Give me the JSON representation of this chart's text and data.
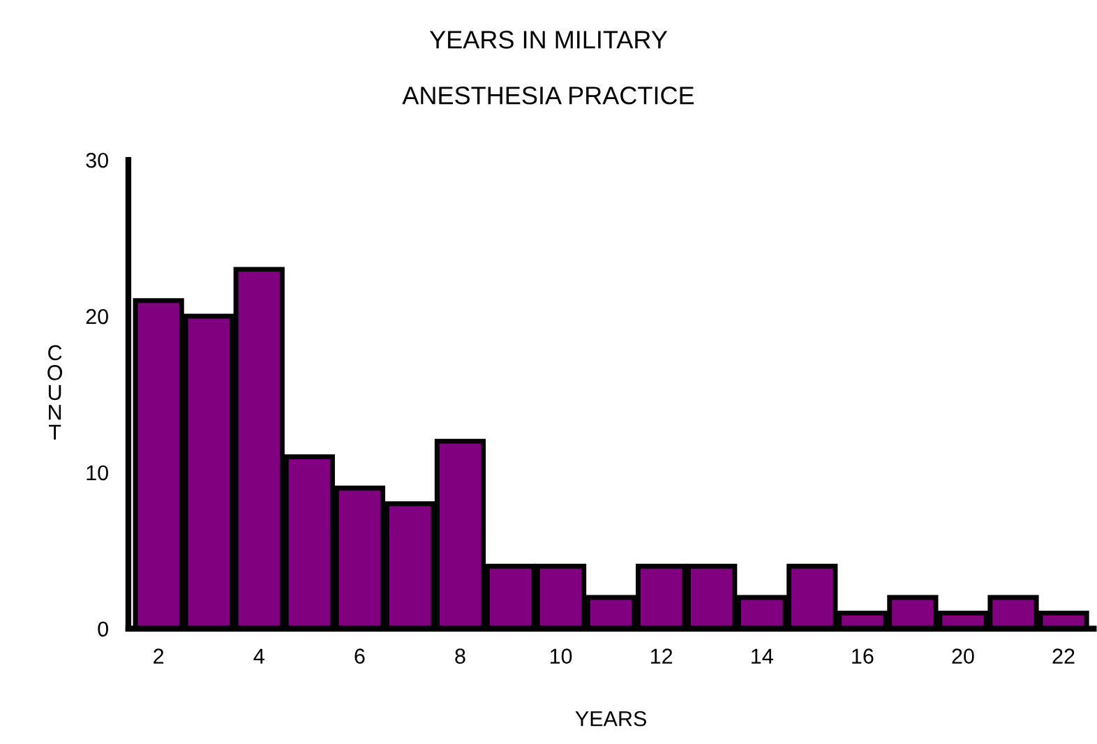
{
  "chart_data": {
    "type": "bar",
    "title": "YEARS IN MILITARY",
    "subtitle": "ANESTHESIA PRACTICE",
    "xlabel": "YEARS",
    "ylabel": "COUNT",
    "categories": [
      "2",
      null,
      "4",
      null,
      "6",
      null,
      "8",
      null,
      "10",
      null,
      "12",
      null,
      "14",
      null,
      "16",
      null,
      "20",
      null,
      "22"
    ],
    "values": [
      21,
      20,
      23,
      11,
      9,
      8,
      12,
      4,
      4,
      2,
      4,
      4,
      2,
      4,
      1,
      2,
      1,
      2,
      1
    ],
    "color": "#800080",
    "ylim": [
      0,
      30
    ],
    "yticks": [
      0,
      10,
      20,
      30
    ],
    "grid": false,
    "legend": false
  }
}
